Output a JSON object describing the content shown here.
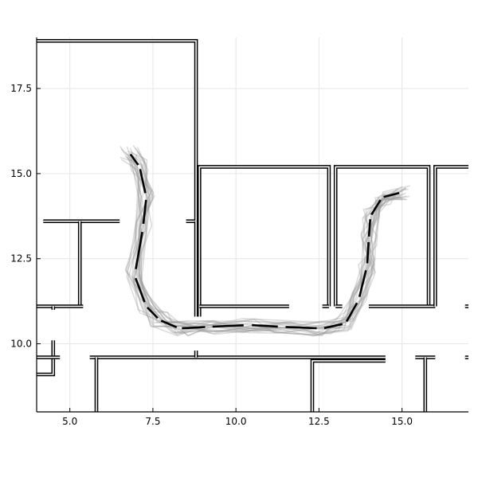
{
  "chart_data": {
    "type": "line",
    "title": "",
    "xlabel": "",
    "ylabel": "",
    "xlim": [
      4.0,
      17.0
    ],
    "ylim": [
      8.0,
      19.0
    ],
    "grid": true,
    "legend": "none",
    "xticks": [
      5.0,
      7.5,
      10.0,
      12.5,
      15.0
    ],
    "yticks": [
      10.0,
      12.5,
      15.0,
      17.5
    ],
    "xtick_labels": [
      "5.0",
      "7.5",
      "10.0",
      "12.5",
      "15.0"
    ],
    "ytick_labels": [
      "10.0",
      "12.5",
      "15.0",
      "17.5"
    ],
    "colors": {
      "walls": "#000000",
      "trajectory": "#000000",
      "samples": "#9c9c9c",
      "grid": "#e6e6e6"
    },
    "map_walls": [
      {
        "name": "upper-room",
        "points": [
          [
            4.0,
            18.9
          ],
          [
            8.8,
            18.9
          ],
          [
            8.8,
            13.6
          ],
          [
            8.5,
            13.6
          ]
        ]
      },
      {
        "name": "center-wall-upper",
        "points": [
          [
            8.8,
            13.6
          ],
          [
            8.8,
            10.8
          ]
        ]
      },
      {
        "name": "left-ledge",
        "points": [
          [
            4.2,
            13.6
          ],
          [
            6.5,
            13.6
          ]
        ]
      },
      {
        "name": "left-column",
        "points": [
          [
            5.3,
            13.6
          ],
          [
            5.3,
            11.1
          ]
        ]
      },
      {
        "name": "left-lower-ledge",
        "points": [
          [
            4.0,
            11.1
          ],
          [
            5.4,
            11.1
          ]
        ]
      },
      {
        "name": "left-notch",
        "points": [
          [
            4.5,
            11.1
          ],
          [
            4.5,
            11.0
          ]
        ]
      },
      {
        "name": "room-a",
        "points": [
          [
            8.9,
            10.8
          ],
          [
            8.9,
            15.2
          ],
          [
            12.8,
            15.2
          ],
          [
            12.8,
            11.1
          ]
        ]
      },
      {
        "name": "room-a-floor",
        "points": [
          [
            8.9,
            11.1
          ],
          [
            11.6,
            11.1
          ]
        ]
      },
      {
        "name": "room-a-door",
        "points": [
          [
            12.6,
            11.1
          ],
          [
            12.8,
            11.1
          ]
        ]
      },
      {
        "name": "room-b",
        "points": [
          [
            13.0,
            11.1
          ],
          [
            13.0,
            15.2
          ],
          [
            15.8,
            15.2
          ],
          [
            15.8,
            11.1
          ]
        ]
      },
      {
        "name": "room-b-floor-left",
        "points": [
          [
            13.0,
            11.1
          ],
          [
            13.2,
            11.1
          ]
        ]
      },
      {
        "name": "room-b-floor-right",
        "points": [
          [
            14.0,
            11.1
          ],
          [
            16.0,
            11.1
          ]
        ]
      },
      {
        "name": "room-c",
        "points": [
          [
            16.0,
            11.1
          ],
          [
            16.0,
            15.2
          ],
          [
            17.0,
            15.2
          ]
        ]
      },
      {
        "name": "right-stub",
        "points": [
          [
            16.9,
            11.1
          ],
          [
            17.0,
            11.1
          ]
        ]
      },
      {
        "name": "corridor-floor",
        "points": [
          [
            5.6,
            9.6
          ],
          [
            14.5,
            9.6
          ]
        ]
      },
      {
        "name": "lower-left-wall",
        "points": [
          [
            5.8,
            9.6
          ],
          [
            5.8,
            8.0
          ]
        ]
      },
      {
        "name": "lower-center-notch",
        "points": [
          [
            8.8,
            9.6
          ],
          [
            8.8,
            9.8
          ]
        ]
      },
      {
        "name": "lower-room",
        "points": [
          [
            12.3,
            8.0
          ],
          [
            12.3,
            9.5
          ],
          [
            14.5,
            9.5
          ]
        ]
      },
      {
        "name": "lower-right-ledge",
        "points": [
          [
            15.4,
            9.6
          ],
          [
            16.0,
            9.6
          ]
        ]
      },
      {
        "name": "lower-right-wall",
        "points": [
          [
            15.7,
            9.6
          ],
          [
            15.7,
            8.0
          ]
        ]
      },
      {
        "name": "far-right-stub",
        "points": [
          [
            16.9,
            9.6
          ],
          [
            17.0,
            9.6
          ]
        ]
      },
      {
        "name": "lower-left-box",
        "points": [
          [
            4.0,
            9.1
          ],
          [
            4.5,
            9.1
          ],
          [
            4.5,
            10.1
          ]
        ]
      },
      {
        "name": "lower-left-ledge",
        "points": [
          [
            4.0,
            9.6
          ],
          [
            4.7,
            9.6
          ]
        ]
      }
    ],
    "series": [
      {
        "style": "dashed",
        "x": [
          6.8,
          7.1,
          7.3,
          7.2,
          6.95,
          7.3,
          7.7,
          8.3,
          9.2,
          10.4,
          11.4,
          12.6,
          13.3,
          13.7,
          13.95,
          14.0,
          14.05,
          14.4,
          15.0
        ],
        "y": [
          15.6,
          15.2,
          14.3,
          13.4,
          12.0,
          11.1,
          10.7,
          10.45,
          10.5,
          10.55,
          10.5,
          10.45,
          10.6,
          11.3,
          12.3,
          13.1,
          13.75,
          14.3,
          14.45
        ]
      }
    ]
  }
}
